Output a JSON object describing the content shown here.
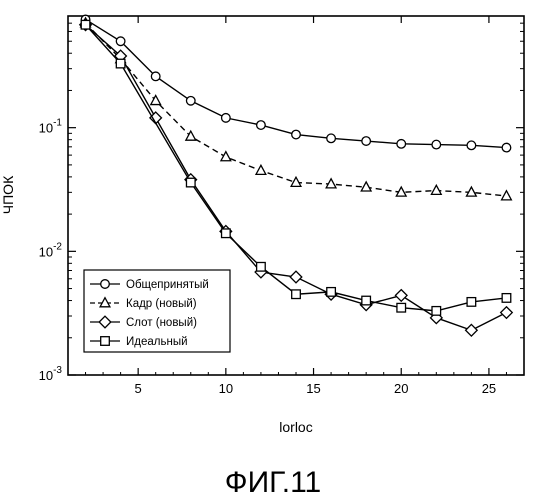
{
  "chart_data": {
    "type": "line",
    "title": "",
    "xlabel": "lorloc",
    "ylabel": "ЧПОК",
    "yscale": "log",
    "xlim": [
      1,
      27
    ],
    "ylim": [
      0.001,
      0.8
    ],
    "xticks": [
      5,
      10,
      15,
      20,
      25
    ],
    "xtick_labels": [
      "5",
      "10",
      "15",
      "20",
      "25"
    ],
    "ytick_labels": [
      {
        "value": 0.1,
        "base": "10",
        "exp": "-1"
      },
      {
        "value": 0.01,
        "base": "10",
        "exp": "-2"
      },
      {
        "value": 0.001,
        "base": "10",
        "exp": "-3"
      }
    ],
    "grid": false,
    "legend_position": "lower-left",
    "series": [
      {
        "name": "Общепринятый",
        "marker": "circle",
        "dash": "solid",
        "x": [
          2,
          4,
          6,
          8,
          10,
          12,
          14,
          16,
          18,
          20,
          22,
          24,
          26
        ],
        "y": [
          0.75,
          0.5,
          0.26,
          0.165,
          0.12,
          0.105,
          0.088,
          0.082,
          0.078,
          0.074,
          0.073,
          0.072,
          0.069
        ]
      },
      {
        "name": "Кадр (новый)",
        "marker": "triangle",
        "dash": "dashed",
        "x": [
          2,
          4,
          6,
          8,
          10,
          12,
          14,
          16,
          18,
          20,
          22,
          24,
          26
        ],
        "y": [
          0.7,
          0.36,
          0.165,
          0.085,
          0.058,
          0.045,
          0.036,
          0.035,
          0.033,
          0.03,
          0.031,
          0.03,
          0.028
        ]
      },
      {
        "name": "Слот (новый)",
        "marker": "diamond",
        "dash": "solid",
        "x": [
          2,
          4,
          6,
          8,
          10,
          12,
          14,
          16,
          18,
          20,
          22,
          24,
          26
        ],
        "y": [
          0.68,
          0.38,
          0.12,
          0.038,
          0.0145,
          0.0068,
          0.0062,
          0.0045,
          0.0037,
          0.0044,
          0.0029,
          0.0023,
          0.0032
        ]
      },
      {
        "name": "Идеальный",
        "marker": "square",
        "dash": "solid",
        "x": [
          2,
          4,
          8,
          10,
          12,
          14,
          16,
          18,
          20,
          22,
          24,
          26
        ],
        "y": [
          0.68,
          0.33,
          0.036,
          0.014,
          0.0075,
          0.0045,
          0.0047,
          0.004,
          0.0035,
          0.0033,
          0.0039,
          0.0042
        ]
      }
    ]
  },
  "caption": "ФИГ.11"
}
